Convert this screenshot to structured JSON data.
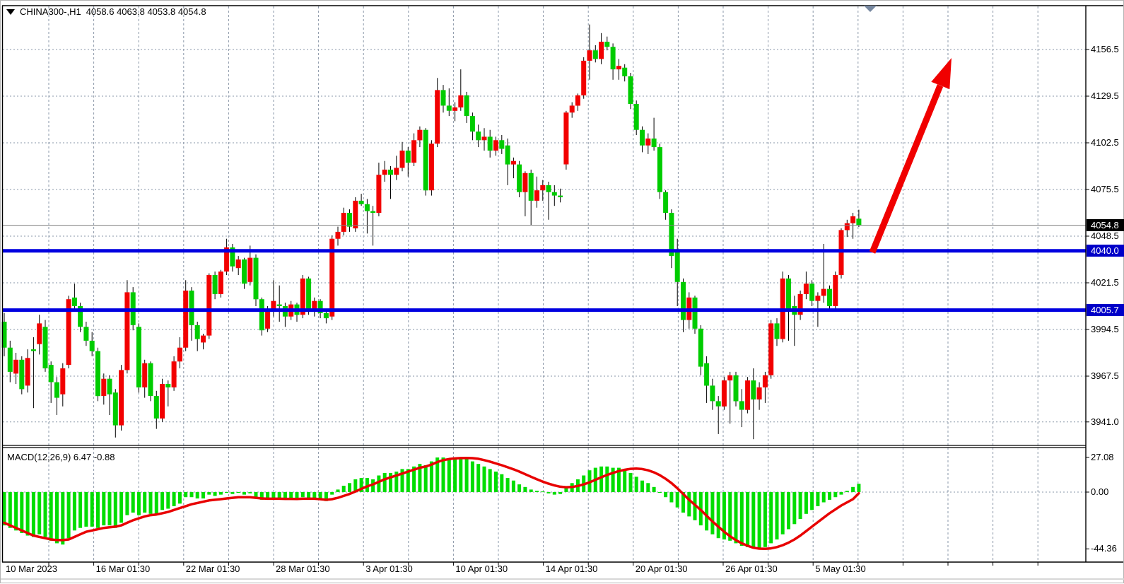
{
  "header": {
    "symbol": "CHINA300-,H1",
    "ohlc": "4058.6 4063.8 4053.8 4054.8",
    "collapse_icon": "triangle-down",
    "scroll_marker_icon": "triangle-down"
  },
  "macd_panel": {
    "label": "MACD(12,26,9) 6.47 -0.88",
    "axis_max": "27.08",
    "axis_zero": "0.00",
    "axis_min": "-44.36"
  },
  "price_axis": {
    "ticks": [
      {
        "label": "4156.5",
        "price": 4156.5
      },
      {
        "label": "4129.5",
        "price": 4129.5
      },
      {
        "label": "4102.5",
        "price": 4102.5
      },
      {
        "label": "4075.5",
        "price": 4075.5
      },
      {
        "label": "4048.5",
        "price": 4048.5
      },
      {
        "label": "4021.5",
        "price": 4021.5
      },
      {
        "label": "3994.5",
        "price": 3994.5
      },
      {
        "label": "3967.5",
        "price": 3967.5
      },
      {
        "label": "3941.0",
        "price": 3941.0
      }
    ],
    "current_price": {
      "label": "4054.8",
      "price": 4054.8
    },
    "levels": [
      {
        "label": "4040.0",
        "price": 4040.0
      },
      {
        "label": "4005.7",
        "price": 4005.7
      }
    ]
  },
  "time_axis": {
    "labels": [
      "10 Mar 2023",
      "16 Mar 01:30",
      "22 Mar 01:30",
      "28 Mar 01:30",
      "3 Apr 01:30",
      "10 Apr 01:30",
      "14 Apr 01:30",
      "20 Apr 01:30",
      "26 Apr 01:30",
      "5 May 01:30"
    ]
  },
  "colors": {
    "bull": "#f20000",
    "bear": "#00cc00",
    "wick": "#000000",
    "hist": "#00dd00",
    "signal": "#e80000",
    "level_line": "#0000e0",
    "grid": "#8a97a8",
    "current_line": "#808080",
    "arrow": "#f00000",
    "label_bg_black": "#000000",
    "label_bg_blue": "#0000c8"
  },
  "annotations": {
    "trend_arrow": {
      "direction": "up",
      "color": "#f00000",
      "from_price": 4040.0,
      "meaning": "bullish projection from 4040.0 level"
    }
  },
  "chart_data": {
    "type": "candlestick",
    "title": "CHINA300-,H1",
    "symbol": "CHINA300-",
    "timeframe": "H1",
    "last_ohlc": {
      "open": 4058.6,
      "high": 4063.8,
      "low": 4053.8,
      "close": 4054.8
    },
    "price_range": [
      3941.0,
      4156.5
    ],
    "horizontal_levels": [
      4040.0,
      4005.7
    ],
    "current_price": 4054.8,
    "x_tick_labels": [
      "10 Mar 2023",
      "16 Mar 01:30",
      "22 Mar 01:30",
      "28 Mar 01:30",
      "3 Apr 01:30",
      "10 Apr 01:30",
      "14 Apr 01:30",
      "20 Apr 01:30",
      "26 Apr 01:30",
      "5 May 01:30"
    ],
    "grid": true,
    "candles": [
      [
        3999,
        4004,
        3979,
        3984
      ],
      [
        3984,
        3988,
        3964,
        3970
      ],
      [
        3969,
        3981,
        3963,
        3977
      ],
      [
        3977,
        3979,
        3957,
        3960
      ],
      [
        3962,
        3983,
        3958,
        3978
      ],
      [
        3983,
        3990,
        3949,
        3982
      ],
      [
        3986,
        4003,
        3980,
        3998
      ],
      [
        3996,
        4000,
        3970,
        3972
      ],
      [
        3974,
        3976,
        3952,
        3964
      ],
      [
        3964,
        3967,
        3945,
        3955
      ],
      [
        3957,
        3975,
        3950,
        3972
      ],
      [
        3974,
        4014,
        3972,
        4012
      ],
      [
        4013,
        4021,
        4005,
        4008
      ],
      [
        4008,
        4010,
        3993,
        3996
      ],
      [
        3996,
        3999,
        3985,
        3988
      ],
      [
        3988,
        3993,
        3979,
        3982
      ],
      [
        3982,
        3984,
        3953,
        3956
      ],
      [
        3956,
        3969,
        3951,
        3966
      ],
      [
        3966,
        3968,
        3945,
        3957
      ],
      [
        3958,
        3960,
        3932,
        3939
      ],
      [
        3939,
        3974,
        3936,
        3971
      ],
      [
        3971,
        4023,
        3969,
        4016
      ],
      [
        4016,
        4019,
        3994,
        3997
      ],
      [
        3996,
        3998,
        3958,
        3961
      ],
      [
        3961,
        3977,
        3955,
        3975
      ],
      [
        3975,
        3976,
        3953,
        3956
      ],
      [
        3956,
        3959,
        3937,
        3943
      ],
      [
        3943,
        3966,
        3941,
        3963
      ],
      [
        3963,
        3965,
        3950,
        3961
      ],
      [
        3961,
        3979,
        3959,
        3976
      ],
      [
        3976,
        3990,
        3972,
        3984
      ],
      [
        3984,
        4023,
        3982,
        4017
      ],
      [
        4017,
        4019,
        3988,
        3997
      ],
      [
        3997,
        3999,
        3982,
        3989
      ],
      [
        3987,
        3992,
        3983,
        3991
      ],
      [
        3991,
        4027,
        3989,
        4026
      ],
      [
        4026,
        4028,
        4012,
        4015
      ],
      [
        4015,
        4029,
        4013,
        4028
      ],
      [
        4028,
        4047,
        4026,
        4042
      ],
      [
        4042,
        4044,
        4028,
        4031
      ],
      [
        4030,
        4037,
        4026,
        4035
      ],
      [
        4035,
        4036,
        4018,
        4021
      ],
      [
        4022,
        4043,
        4020,
        4036
      ],
      [
        4036,
        4038,
        4008,
        4012
      ],
      [
        4012,
        4013,
        3991,
        3994
      ],
      [
        3995,
        4008,
        3993,
        4006
      ],
      [
        4006,
        4023,
        4002,
        4011
      ],
      [
        4009,
        4020,
        3999,
        4008
      ],
      [
        4008,
        4010,
        3996,
        4002
      ],
      [
        4002,
        4011,
        4000,
        4009
      ],
      [
        4009,
        4010,
        3999,
        4003
      ],
      [
        4003,
        4026,
        4001,
        4024
      ],
      [
        4024,
        4025,
        4003,
        4006
      ],
      [
        4006,
        4013,
        4002,
        4011
      ],
      [
        4011,
        4012,
        4001,
        4004
      ],
      [
        4004,
        4006,
        3998,
        4001
      ],
      [
        4002,
        4049,
        4000,
        4047
      ],
      [
        4047,
        4054,
        4043,
        4051
      ],
      [
        4051,
        4065,
        4049,
        4062
      ],
      [
        4062,
        4064,
        4051,
        4054
      ],
      [
        4053,
        4071,
        4051,
        4069
      ],
      [
        4069,
        4073,
        4066,
        4067
      ],
      [
        4067,
        4070,
        4050,
        4063
      ],
      [
        4063,
        4066,
        4043,
        4062
      ],
      [
        4062,
        4091,
        4060,
        4084
      ],
      [
        4084,
        4092,
        4080,
        4087
      ],
      [
        4087,
        4089,
        4070,
        4084
      ],
      [
        4084,
        4095,
        4081,
        4088
      ],
      [
        4088,
        4103,
        4086,
        4098
      ],
      [
        4098,
        4100,
        4083,
        4091
      ],
      [
        4091,
        4108,
        4089,
        4104
      ],
      [
        4104,
        4112,
        4100,
        4110
      ],
      [
        4110,
        4111,
        4072,
        4075
      ],
      [
        4075,
        4104,
        4072,
        4102
      ],
      [
        4102,
        4140,
        4100,
        4133
      ],
      [
        4133,
        4136,
        4120,
        4124
      ],
      [
        4124,
        4134,
        4118,
        4121
      ],
      [
        4121,
        4126,
        4115,
        4123
      ],
      [
        4123,
        4145,
        4121,
        4130
      ],
      [
        4130,
        4132,
        4114,
        4118
      ],
      [
        4118,
        4120,
        4104,
        4109
      ],
      [
        4109,
        4113,
        4100,
        4104
      ],
      [
        4104,
        4111,
        4098,
        4106
      ],
      [
        4106,
        4110,
        4094,
        4098
      ],
      [
        4098,
        4106,
        4095,
        4104
      ],
      [
        4104,
        4107,
        4096,
        4099
      ],
      [
        4101,
        4105,
        4078,
        4090
      ],
      [
        4090,
        4094,
        4082,
        4092
      ],
      [
        4090,
        4092,
        4071,
        4074
      ],
      [
        4074,
        4086,
        4060,
        4085
      ],
      [
        4085,
        4087,
        4055,
        4069
      ],
      [
        4069,
        4083,
        4065,
        4075
      ],
      [
        4075,
        4081,
        4069,
        4078
      ],
      [
        4078,
        4080,
        4058,
        4074
      ],
      [
        4074,
        4078,
        4066,
        4072
      ],
      [
        4072,
        4076,
        4068,
        4071
      ],
      [
        4090,
        4121,
        4087,
        4120
      ],
      [
        4120,
        4126,
        4117,
        4124
      ],
      [
        4124,
        4131,
        4121,
        4130
      ],
      [
        4130,
        4152,
        4128,
        4150
      ],
      [
        4150,
        4171,
        4139,
        4156
      ],
      [
        4156,
        4159,
        4149,
        4151
      ],
      [
        4151,
        4166,
        4148,
        4161
      ],
      [
        4161,
        4164,
        4156,
        4158
      ],
      [
        4158,
        4160,
        4139,
        4145
      ],
      [
        4145,
        4151,
        4139,
        4147
      ],
      [
        4146,
        4148,
        4138,
        4141
      ],
      [
        4141,
        4143,
        4122,
        4125
      ],
      [
        4125,
        4127,
        4107,
        4110
      ],
      [
        4110,
        4112,
        4097,
        4101
      ],
      [
        4101,
        4108,
        4096,
        4105
      ],
      [
        4105,
        4117,
        4098,
        4100
      ],
      [
        4100,
        4102,
        4070,
        4074
      ],
      [
        4074,
        4075,
        4058,
        4062
      ],
      [
        4062,
        4064,
        4030,
        4037
      ],
      [
        4040,
        4047,
        4008,
        4022
      ],
      [
        4022,
        4024,
        3993,
        4000
      ],
      [
        4000,
        4016,
        3995,
        4013
      ],
      [
        4013,
        4014,
        3992,
        3995
      ],
      [
        3995,
        3997,
        3968,
        3973
      ],
      [
        3975,
        3979,
        3952,
        3962
      ],
      [
        3962,
        3966,
        3948,
        3953
      ],
      [
        3953,
        3956,
        3934,
        3950
      ],
      [
        3950,
        3967,
        3948,
        3965
      ],
      [
        3965,
        3970,
        3940,
        3968
      ],
      [
        3968,
        3970,
        3950,
        3953
      ],
      [
        3953,
        3960,
        3938,
        3948
      ],
      [
        3948,
        3967,
        3946,
        3965
      ],
      [
        3965,
        3972,
        3931,
        3954
      ],
      [
        3954,
        3964,
        3948,
        3961
      ],
      [
        3961,
        3970,
        3952,
        3968
      ],
      [
        3968,
        4000,
        3966,
        3998
      ],
      [
        3998,
        4001,
        3985,
        3989
      ],
      [
        3989,
        4028,
        3987,
        4024
      ],
      [
        4024,
        4026,
        3988,
        4006
      ],
      [
        4008,
        4014,
        3985,
        4003
      ],
      [
        4003,
        4017,
        4000,
        4015
      ],
      [
        4015,
        4028,
        4012,
        4021
      ],
      [
        4021,
        4023,
        4008,
        4011
      ],
      [
        4011,
        4016,
        3996,
        4014
      ],
      [
        4014,
        4044,
        4010,
        4018
      ],
      [
        4018,
        4020,
        4005,
        4008
      ],
      [
        4008,
        4028,
        4006,
        4026
      ],
      [
        4026,
        4053,
        4024,
        4052
      ],
      [
        4052,
        4058,
        4048,
        4056
      ],
      [
        4056,
        4062,
        4047,
        4060
      ],
      [
        4058.6,
        4063.8,
        4053.8,
        4054.8
      ]
    ],
    "macd": {
      "params": "12,26,9",
      "macd_value": 6.47,
      "signal_value": -0.88,
      "range": [
        -44.36,
        27.08
      ],
      "histogram": [
        -26,
        -28,
        -30,
        -32,
        -34,
        -35,
        -33,
        -35,
        -38,
        -40,
        -41,
        -36,
        -30,
        -28,
        -27,
        -27,
        -28,
        -26,
        -26,
        -28,
        -24,
        -18,
        -16,
        -18,
        -16,
        -17,
        -18,
        -14,
        -13,
        -11,
        -9,
        -4,
        -4,
        -5,
        -5,
        -2,
        -3,
        -2,
        -0.5,
        -1.5,
        -0.5,
        -2,
        -1,
        -4,
        -6,
        -6,
        -5,
        -5,
        -6,
        -5,
        -6,
        -4,
        -5,
        -5,
        -6,
        -7,
        -2,
        2,
        5,
        7,
        10,
        11,
        11,
        10,
        13,
        15,
        15,
        16,
        18,
        18,
        20,
        22,
        21,
        24,
        27,
        27,
        26,
        26,
        27,
        26,
        24,
        22,
        20,
        18,
        16,
        14,
        11,
        9,
        6,
        4,
        2,
        1,
        0.5,
        -1,
        -2,
        -1.5,
        3,
        7,
        10,
        13,
        17,
        19,
        20,
        20,
        19,
        19,
        18,
        15,
        12,
        9,
        7,
        4,
        0,
        -4,
        -8,
        -12,
        -16,
        -19,
        -22,
        -26,
        -30,
        -33,
        -36,
        -37,
        -38,
        -40,
        -42,
        -43,
        -44,
        -44.4,
        -43,
        -40,
        -37,
        -33,
        -29,
        -25,
        -21,
        -17,
        -14,
        -11,
        -8,
        -6,
        -4,
        -2,
        1,
        4,
        6.47
      ],
      "signal": [
        -24,
        -26,
        -28,
        -30,
        -32,
        -34,
        -35,
        -36,
        -37,
        -37.5,
        -37.5,
        -37,
        -35,
        -33,
        -31,
        -30,
        -29,
        -28,
        -27.5,
        -27,
        -26,
        -24,
        -22,
        -20.5,
        -19,
        -18,
        -17.5,
        -16.5,
        -15.5,
        -14,
        -12.5,
        -11,
        -9.5,
        -8.5,
        -7.5,
        -6.5,
        -6,
        -5.5,
        -5,
        -4.5,
        -4,
        -4,
        -4,
        -4.5,
        -5,
        -5.2,
        -5.2,
        -5.2,
        -5.3,
        -5.3,
        -5.4,
        -5.2,
        -5.2,
        -5.2,
        -5.5,
        -6,
        -5.5,
        -4.5,
        -3,
        -1.5,
        0.5,
        2.5,
        4.5,
        6,
        8,
        10,
        11.5,
        13,
        14.5,
        16,
        17.5,
        19,
        20,
        21.5,
        23.5,
        25,
        25.8,
        26.3,
        26.6,
        26.7,
        26.5,
        26,
        25,
        23.8,
        22.4,
        21,
        19.4,
        17.8,
        16,
        14,
        12,
        10,
        8.2,
        6.6,
        5.2,
        4.2,
        3.8,
        4,
        4.8,
        6,
        7.6,
        9.6,
        11.6,
        13.4,
        15,
        16.4,
        17.4,
        18.2,
        18.4,
        18,
        17,
        15.4,
        13.2,
        10.4,
        7,
        3,
        -1.5,
        -6,
        -10,
        -14,
        -18.5,
        -23,
        -27,
        -31,
        -34.5,
        -37.5,
        -40,
        -42,
        -43.5,
        -44.2,
        -44.3,
        -44,
        -43,
        -41.5,
        -39.5,
        -37,
        -34,
        -30.5,
        -27,
        -23.5,
        -20,
        -16.5,
        -13.5,
        -10.5,
        -8,
        -5.5,
        -0.88
      ]
    }
  }
}
